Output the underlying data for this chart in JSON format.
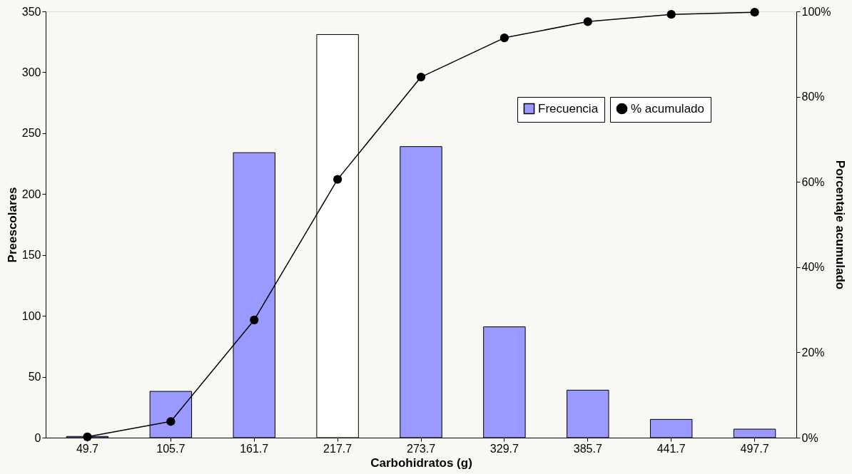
{
  "chart_data": {
    "type": "bar",
    "xlabel": "Carbohidratos (g)",
    "ylabel": "Preescolares",
    "y2label": "Porcentaje acumulado",
    "categories": [
      "49.7",
      "105.7",
      "161.7",
      "217.7",
      "273.7",
      "329.7",
      "385.7",
      "441.7",
      "497.7"
    ],
    "series": [
      {
        "name": "Frecuencia",
        "color": "#9999ff",
        "colors": [
          "#9999ff",
          "#9999ff",
          "#9999ff",
          "#ffffff",
          "#9999ff",
          "#9999ff",
          "#9999ff",
          "#9999ff",
          "#9999ff"
        ],
        "values": [
          1,
          38,
          234,
          331,
          239,
          91,
          39,
          15,
          7
        ]
      },
      {
        "name": "% acumulado",
        "type": "line",
        "axis": "y2",
        "color": "#000000",
        "marker": "circle",
        "values": [
          0.2,
          3.8,
          27.6,
          60.6,
          84.6,
          93.8,
          97.6,
          99.3,
          99.8
        ]
      }
    ],
    "ylim": [
      0,
      350
    ],
    "yticks": [
      0,
      50,
      100,
      150,
      200,
      250,
      300,
      350
    ],
    "y2lim": [
      0,
      100
    ],
    "y2ticks": [
      {
        "value": 0,
        "label": "0%"
      },
      {
        "value": 20,
        "label": "20%"
      },
      {
        "value": 40,
        "label": "40%"
      },
      {
        "value": 60,
        "label": "60%"
      },
      {
        "value": 80,
        "label": "80%"
      },
      {
        "value": 100,
        "label": "100%"
      }
    ],
    "grid": false,
    "legend": "top right"
  }
}
